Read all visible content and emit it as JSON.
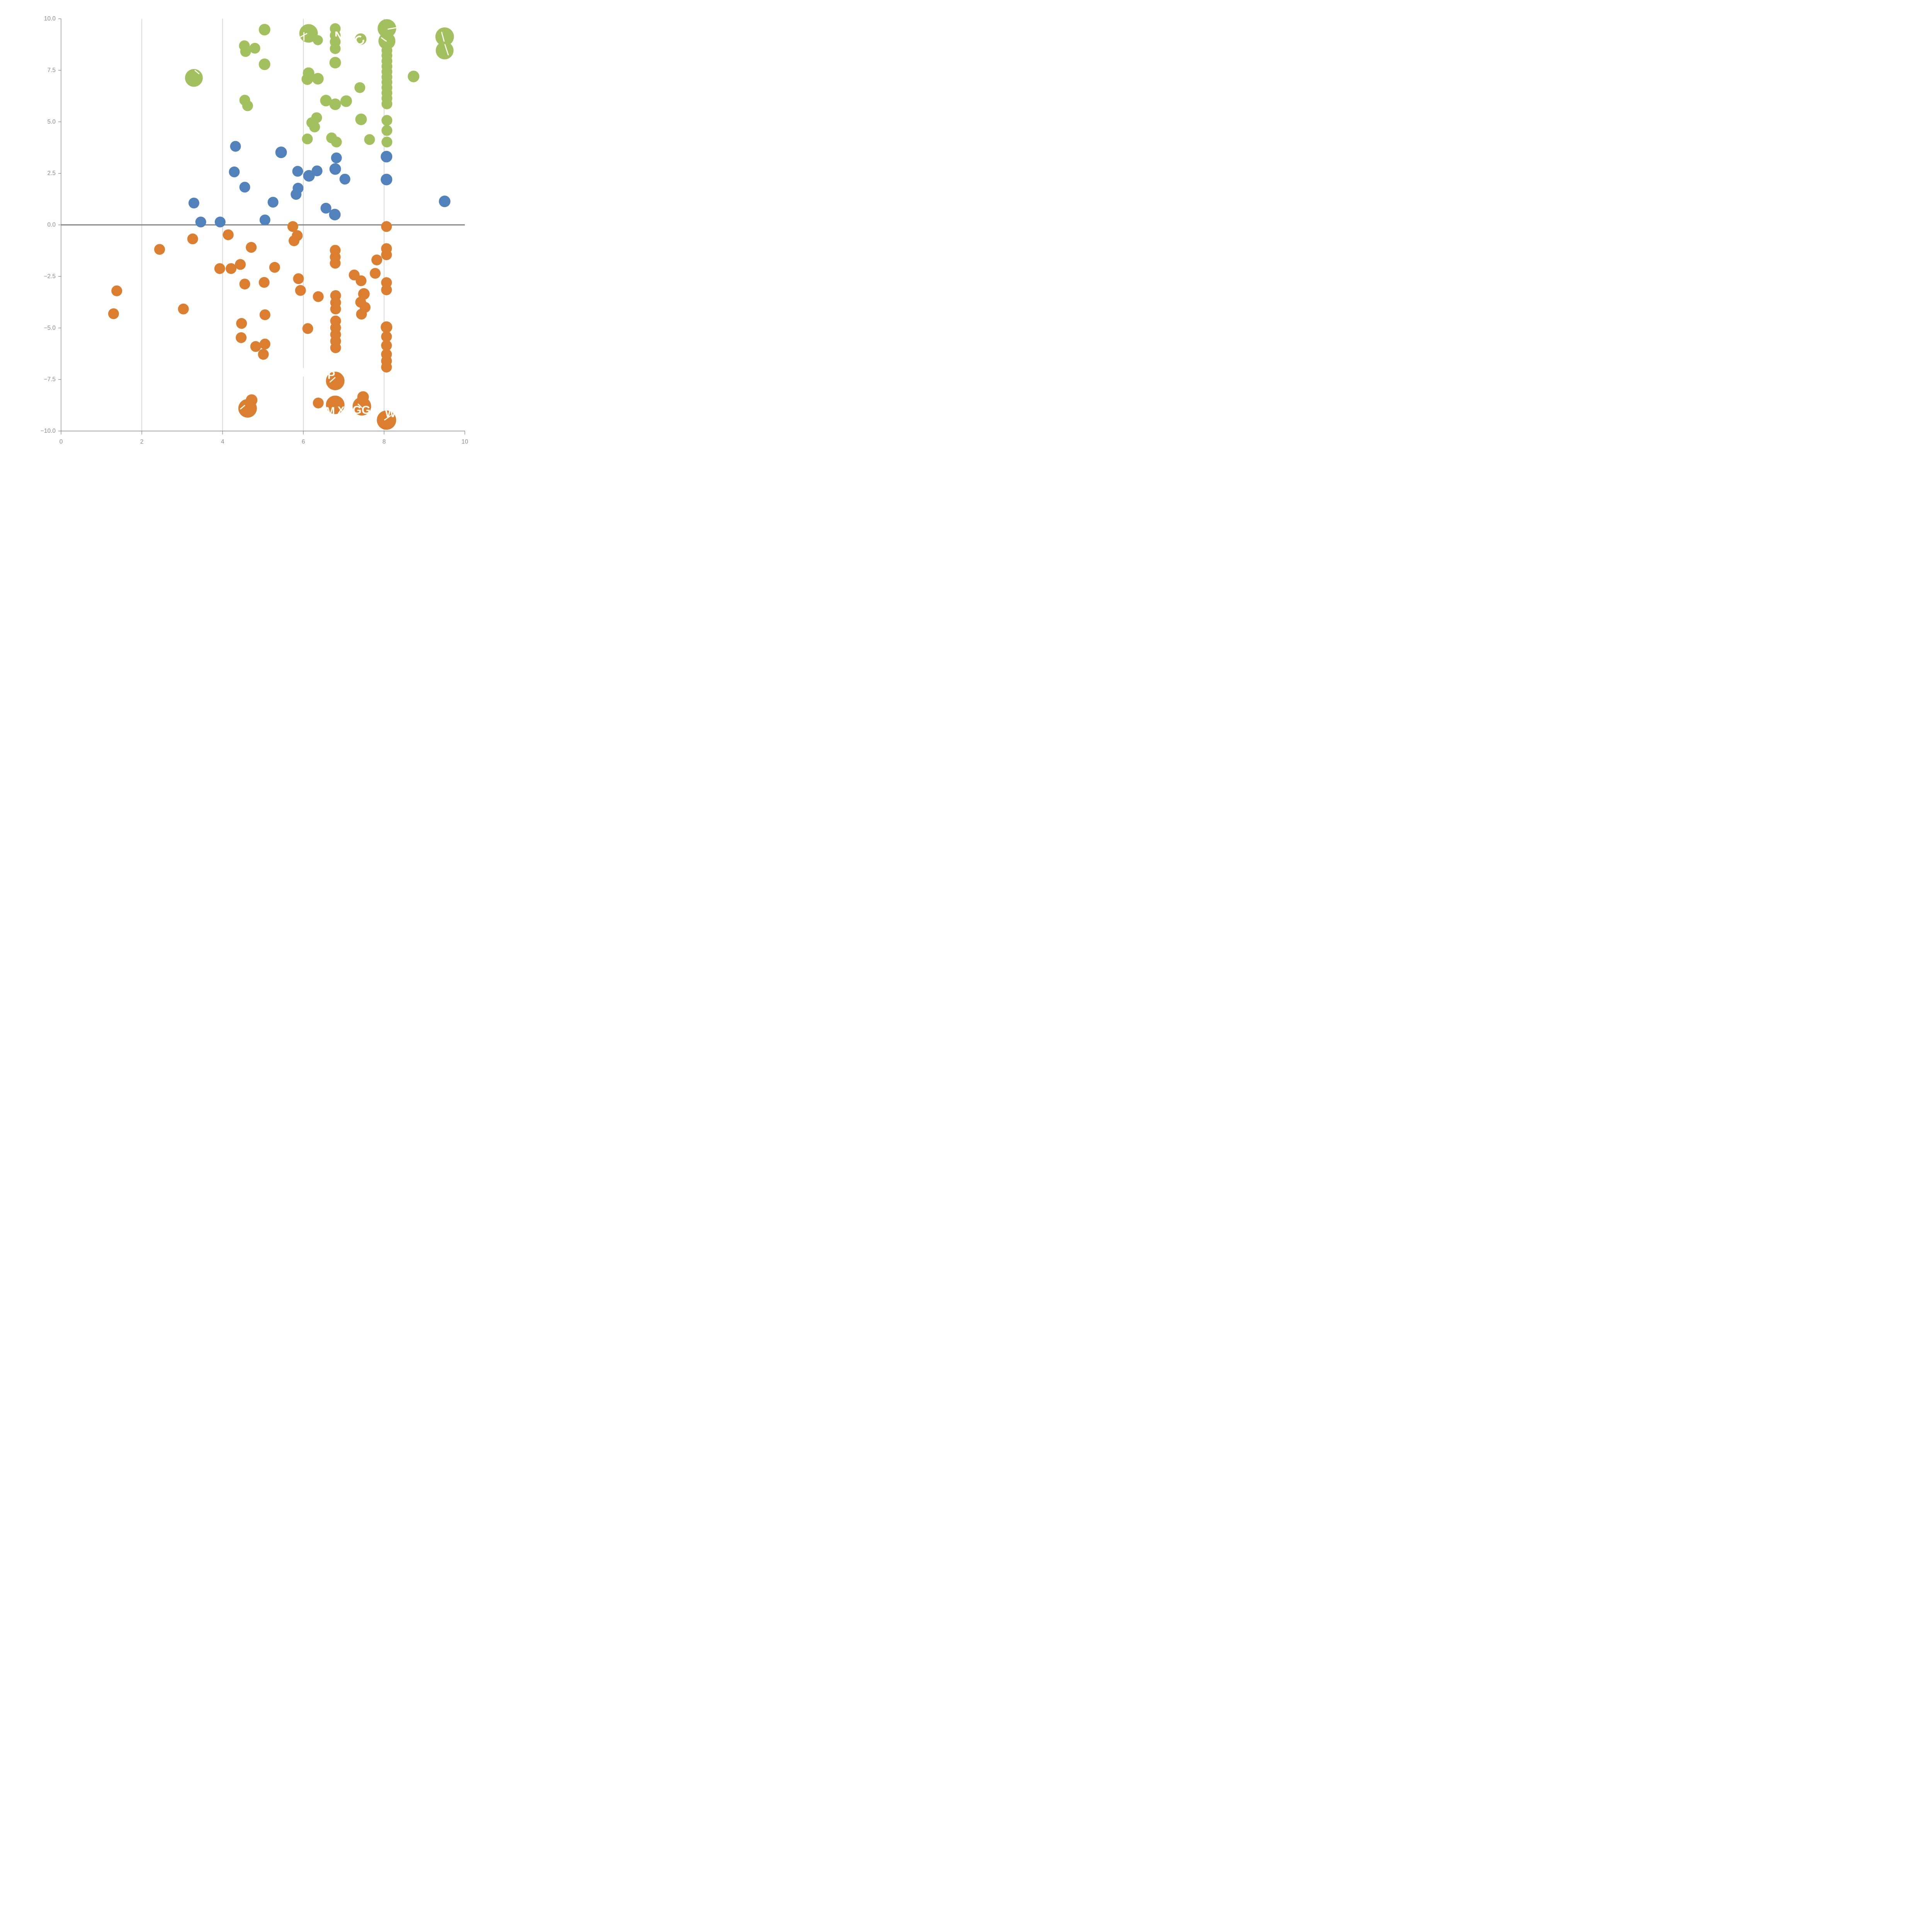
{
  "chart_data": {
    "type": "scatter",
    "title": "",
    "xlabel": "",
    "ylabel": "",
    "x_domain": [
      0,
      10
    ],
    "y_domain": [
      -10,
      10
    ],
    "x_ticks": [
      {
        "v": 0,
        "label": "0"
      },
      {
        "v": 2,
        "label": "2"
      },
      {
        "v": 4,
        "label": "4"
      },
      {
        "v": 6,
        "label": "6"
      },
      {
        "v": 8,
        "label": "8"
      },
      {
        "v": 10,
        "label": "10"
      }
    ],
    "y_ticks": [
      {
        "v": 10,
        "label": "10.0"
      },
      {
        "v": 7.5,
        "label": "7.5"
      },
      {
        "v": 5,
        "label": "5.0"
      },
      {
        "v": 2.5,
        "label": "2.5"
      },
      {
        "v": 0,
        "label": "0.0"
      },
      {
        "v": -2.5,
        "label": "−2.5"
      },
      {
        "v": -5,
        "label": "−5.0"
      },
      {
        "v": -7.5,
        "label": "−7.5"
      },
      {
        "v": -10,
        "label": "−10.0"
      }
    ],
    "grid_x": [
      2,
      4,
      6,
      8
    ],
    "zero_line_y": 0,
    "legend": "none",
    "colors": {
      "green": "#a2c05e",
      "blue": "#5282bb",
      "orange": "#dc7e30",
      "zero_line": "#808080",
      "grid": "#999999",
      "axis": "#888888",
      "tick_label": "#8b8b8b",
      "mark_overlay": "#fffdf2"
    },
    "white_fragments": [
      {
        "x": 6.0,
        "y": -7.15,
        "w": 4,
        "h": 22
      }
    ],
    "series": [
      {
        "name": "green",
        "points": [
          {
            "x": 3.29,
            "y": 7.13,
            "r": 23,
            "marks": [
              {
                "t": "line",
                "dx": 8,
                "dy": -15,
                "len": 13,
                "rot": 40
              }
            ]
          },
          {
            "x": 5.04,
            "y": 9.47,
            "r": 15
          },
          {
            "x": 4.54,
            "y": 8.69,
            "r": 14
          },
          {
            "x": 4.57,
            "y": 8.41,
            "r": 14
          },
          {
            "x": 4.8,
            "y": 8.57,
            "r": 14
          },
          {
            "x": 5.04,
            "y": 7.79,
            "r": 15
          },
          {
            "x": 6.13,
            "y": 9.29,
            "r": 24,
            "marks": [
              {
                "t": "line",
                "dx": -13,
                "dy": 5,
                "len": 19,
                "rot": -28
              },
              {
                "t": "line",
                "dx": -12,
                "dy": 8,
                "len": 20,
                "rot": 90
              }
            ]
          },
          {
            "x": 6.36,
            "y": 8.96,
            "r": 13
          },
          {
            "x": 6.79,
            "y": 9.52,
            "r": 14,
            "marks": [
              {
                "t": "text",
                "v": "N",
                "dx": 9,
                "dy": 19,
                "s": 30
              }
            ]
          },
          {
            "x": 6.79,
            "y": 9.19,
            "r": 14,
            "marks": [
              {
                "t": "text",
                "v": "N",
                "dx": 9,
                "dy": 1,
                "s": 30
              }
            ]
          },
          {
            "x": 6.79,
            "y": 8.88,
            "r": 14
          },
          {
            "x": 6.79,
            "y": 8.55,
            "r": 14
          },
          {
            "x": 6.79,
            "y": 7.87,
            "r": 15
          },
          {
            "x": 6.13,
            "y": 7.36,
            "r": 15
          },
          {
            "x": 6.1,
            "y": 7.07,
            "r": 15
          },
          {
            "x": 6.36,
            "y": 7.09,
            "r": 15
          },
          {
            "x": 6.56,
            "y": 6.03,
            "r": 15
          },
          {
            "x": 6.79,
            "y": 5.85,
            "r": 15
          },
          {
            "x": 7.06,
            "y": 6.0,
            "r": 15
          },
          {
            "x": 6.33,
            "y": 5.2,
            "r": 14
          },
          {
            "x": 6.21,
            "y": 4.96,
            "r": 14
          },
          {
            "x": 6.28,
            "y": 4.75,
            "r": 14
          },
          {
            "x": 7.43,
            "y": 5.12,
            "r": 15
          },
          {
            "x": 6.1,
            "y": 4.17,
            "r": 14
          },
          {
            "x": 6.7,
            "y": 4.22,
            "r": 14
          },
          {
            "x": 6.82,
            "y": 4.02,
            "r": 14
          },
          {
            "x": 7.64,
            "y": 4.14,
            "r": 14
          },
          {
            "x": 8.73,
            "y": 7.2,
            "r": 15
          },
          {
            "x": 7.42,
            "y": 9.01,
            "r": 15,
            "marks": [
              {
                "t": "text",
                "v": "C",
                "dx": -3,
                "dy": 4,
                "s": 34,
                "rot": -35
              }
            ]
          },
          {
            "x": 7.4,
            "y": 6.66,
            "r": 14
          },
          {
            "x": 7.07,
            "y": 6.02,
            "r": 14
          },
          {
            "x": 4.55,
            "y": 6.05,
            "r": 14
          },
          {
            "x": 4.62,
            "y": 5.78,
            "r": 14
          },
          {
            "x": 8.07,
            "y": 9.53,
            "r": 24,
            "marks": [
              {
                "t": "line",
                "dx": 13,
                "dy": 0,
                "len": 20,
                "rot": -10
              }
            ]
          },
          {
            "x": 8.07,
            "y": 8.92,
            "r": 22,
            "marks": [
              {
                "t": "line",
                "dx": -8,
                "dy": -4,
                "len": 15,
                "rot": 35
              }
            ]
          },
          {
            "x": 8.07,
            "y": 8.46,
            "r": 14
          },
          {
            "x": 8.07,
            "y": 8.21,
            "r": 14
          },
          {
            "x": 8.07,
            "y": 7.95,
            "r": 14
          },
          {
            "x": 8.07,
            "y": 7.69,
            "r": 14
          },
          {
            "x": 8.07,
            "y": 7.43,
            "r": 14
          },
          {
            "x": 8.07,
            "y": 7.17,
            "r": 14
          },
          {
            "x": 8.07,
            "y": 6.92,
            "r": 14
          },
          {
            "x": 8.07,
            "y": 6.66,
            "r": 14
          },
          {
            "x": 8.07,
            "y": 6.4,
            "r": 14
          },
          {
            "x": 8.07,
            "y": 6.14,
            "r": 14
          },
          {
            "x": 8.07,
            "y": 5.87,
            "r": 14
          },
          {
            "x": 8.07,
            "y": 5.07,
            "r": 14
          },
          {
            "x": 8.07,
            "y": 4.58,
            "r": 14
          },
          {
            "x": 8.07,
            "y": 4.02,
            "r": 14
          },
          {
            "x": 9.5,
            "y": 9.13,
            "r": 24,
            "marks": [
              {
                "t": "line",
                "dx": -2,
                "dy": 10,
                "len": 44,
                "rot": 75
              }
            ]
          },
          {
            "x": 9.5,
            "y": 8.46,
            "r": 23,
            "marks": [
              {
                "t": "line",
                "dx": 5,
                "dy": -2,
                "len": 28,
                "rot": 72
              }
            ]
          }
        ]
      },
      {
        "name": "blue",
        "points": [
          {
            "x": 4.32,
            "y": 3.81,
            "r": 14
          },
          {
            "x": 5.45,
            "y": 3.52,
            "r": 15
          },
          {
            "x": 4.29,
            "y": 2.57,
            "r": 14
          },
          {
            "x": 4.55,
            "y": 1.83,
            "r": 14
          },
          {
            "x": 5.25,
            "y": 1.1,
            "r": 14
          },
          {
            "x": 5.05,
            "y": 0.24,
            "r": 14
          },
          {
            "x": 3.29,
            "y": 1.06,
            "r": 14
          },
          {
            "x": 3.46,
            "y": 0.14,
            "r": 14
          },
          {
            "x": 3.94,
            "y": 0.14,
            "r": 14
          },
          {
            "x": 5.86,
            "y": 2.6,
            "r": 14
          },
          {
            "x": 6.14,
            "y": 2.38,
            "r": 15
          },
          {
            "x": 6.34,
            "y": 2.62,
            "r": 14
          },
          {
            "x": 5.87,
            "y": 1.78,
            "r": 14
          },
          {
            "x": 5.82,
            "y": 1.48,
            "r": 14
          },
          {
            "x": 6.82,
            "y": 3.25,
            "r": 14
          },
          {
            "x": 6.79,
            "y": 2.71,
            "r": 15
          },
          {
            "x": 7.03,
            "y": 2.22,
            "r": 14
          },
          {
            "x": 6.56,
            "y": 0.81,
            "r": 14
          },
          {
            "x": 6.78,
            "y": 0.5,
            "r": 15
          },
          {
            "x": 8.06,
            "y": 3.31,
            "r": 15
          },
          {
            "x": 8.06,
            "y": 2.2,
            "r": 15
          },
          {
            "x": 9.5,
            "y": 1.14,
            "r": 15
          }
        ]
      },
      {
        "name": "orange",
        "points": [
          {
            "x": 3.26,
            "y": -0.68,
            "r": 14
          },
          {
            "x": 2.44,
            "y": -1.19,
            "r": 14
          },
          {
            "x": 4.14,
            "y": -0.48,
            "r": 14
          },
          {
            "x": 5.74,
            "y": -0.08,
            "r": 14
          },
          {
            "x": 5.85,
            "y": -0.52,
            "r": 14
          },
          {
            "x": 5.77,
            "y": -0.77,
            "r": 14
          },
          {
            "x": 4.71,
            "y": -1.09,
            "r": 14
          },
          {
            "x": 3.93,
            "y": -2.12,
            "r": 14
          },
          {
            "x": 4.21,
            "y": -2.12,
            "r": 14
          },
          {
            "x": 4.44,
            "y": -1.92,
            "r": 14
          },
          {
            "x": 4.55,
            "y": -2.87,
            "r": 14
          },
          {
            "x": 5.29,
            "y": -2.06,
            "r": 14
          },
          {
            "x": 5.03,
            "y": -2.79,
            "r": 14
          },
          {
            "x": 5.88,
            "y": -2.61,
            "r": 14
          },
          {
            "x": 5.93,
            "y": -3.18,
            "r": 14
          },
          {
            "x": 6.37,
            "y": -3.48,
            "r": 14
          },
          {
            "x": 6.79,
            "y": -1.23,
            "r": 14
          },
          {
            "x": 6.79,
            "y": -1.56,
            "r": 14
          },
          {
            "x": 6.79,
            "y": -1.86,
            "r": 14
          },
          {
            "x": 7.26,
            "y": -2.43,
            "r": 14
          },
          {
            "x": 7.43,
            "y": -2.71,
            "r": 14
          },
          {
            "x": 7.82,
            "y": -1.7,
            "r": 14
          },
          {
            "x": 7.78,
            "y": -2.35,
            "r": 14
          },
          {
            "x": 8.06,
            "y": -0.08,
            "r": 14
          },
          {
            "x": 8.06,
            "y": -1.15,
            "r": 14
          },
          {
            "x": 8.06,
            "y": -1.45,
            "r": 14
          },
          {
            "x": 8.06,
            "y": -2.8,
            "r": 14
          },
          {
            "x": 8.06,
            "y": -3.15,
            "r": 14
          },
          {
            "x": 1.38,
            "y": -3.2,
            "r": 14
          },
          {
            "x": 1.3,
            "y": -4.31,
            "r": 14
          },
          {
            "x": 3.03,
            "y": -4.08,
            "r": 14
          },
          {
            "x": 5.05,
            "y": -4.36,
            "r": 14
          },
          {
            "x": 4.47,
            "y": -4.78,
            "r": 14
          },
          {
            "x": 4.46,
            "y": -5.47,
            "r": 14
          },
          {
            "x": 4.82,
            "y": -5.9,
            "r": 14
          },
          {
            "x": 5.05,
            "y": -5.78,
            "r": 14
          },
          {
            "x": 5.01,
            "y": -6.28,
            "r": 14
          },
          {
            "x": 6.8,
            "y": -3.43,
            "r": 14
          },
          {
            "x": 6.8,
            "y": -3.77,
            "r": 14
          },
          {
            "x": 6.8,
            "y": -4.08,
            "r": 14
          },
          {
            "x": 6.8,
            "y": -4.66,
            "r": 14
          },
          {
            "x": 6.8,
            "y": -4.99,
            "r": 14
          },
          {
            "x": 6.8,
            "y": -5.32,
            "r": 14
          },
          {
            "x": 6.8,
            "y": -5.64,
            "r": 14
          },
          {
            "x": 6.8,
            "y": -5.96,
            "r": 14
          },
          {
            "x": 7.5,
            "y": -3.35,
            "r": 15
          },
          {
            "x": 7.42,
            "y": -3.75,
            "r": 14
          },
          {
            "x": 7.53,
            "y": -4.0,
            "r": 14
          },
          {
            "x": 7.44,
            "y": -4.33,
            "r": 14
          },
          {
            "x": 6.11,
            "y": -5.03,
            "r": 14
          },
          {
            "x": 8.06,
            "y": -4.96,
            "r": 15
          },
          {
            "x": 8.06,
            "y": -5.42,
            "r": 14
          },
          {
            "x": 8.06,
            "y": -5.85,
            "r": 14
          },
          {
            "x": 8.06,
            "y": -6.28,
            "r": 14
          },
          {
            "x": 8.06,
            "y": -6.6,
            "r": 14
          },
          {
            "x": 8.06,
            "y": -6.9,
            "r": 14
          },
          {
            "x": 6.79,
            "y": -7.57,
            "r": 24,
            "marks": [
              {
                "t": "text",
                "v": "P",
                "dx": -10,
                "dy": -15,
                "s": 30
              },
              {
                "t": "line",
                "dx": -7,
                "dy": -3,
                "len": 17,
                "rot": -42
              }
            ]
          },
          {
            "x": 6.37,
            "y": -8.64,
            "r": 14
          },
          {
            "x": 6.79,
            "y": -8.73,
            "r": 24,
            "marks": [
              {
                "t": "text",
                "v": "M",
                "dx": -13,
                "dy": 17,
                "s": 30
              },
              {
                "t": "text",
                "v": "X",
                "dx": 15,
                "dy": 14,
                "s": 28
              }
            ]
          },
          {
            "x": 7.48,
            "y": -8.35,
            "r": 15
          },
          {
            "x": 7.45,
            "y": -8.8,
            "r": 24,
            "marks": [
              {
                "t": "text",
                "v": "GG",
                "dx": -1,
                "dy": 10,
                "s": 30
              },
              {
                "t": "line",
                "dx": -5,
                "dy": -1,
                "len": 13,
                "rot": 45
              }
            ]
          },
          {
            "x": 8.06,
            "y": -9.47,
            "r": 25,
            "marks": [
              {
                "t": "text",
                "v": "W",
                "dx": 10,
                "dy": -17,
                "s": 30
              },
              {
                "t": "line",
                "dx": 3,
                "dy": -6,
                "len": 19,
                "rot": -35
              }
            ]
          },
          {
            "x": 4.62,
            "y": -8.9,
            "r": 24,
            "marks": [
              {
                "t": "line",
                "dx": -13,
                "dy": -3,
                "len": 14,
                "rot": -40
              }
            ]
          },
          {
            "x": 4.72,
            "y": -8.5,
            "r": 15
          }
        ]
      }
    ]
  }
}
